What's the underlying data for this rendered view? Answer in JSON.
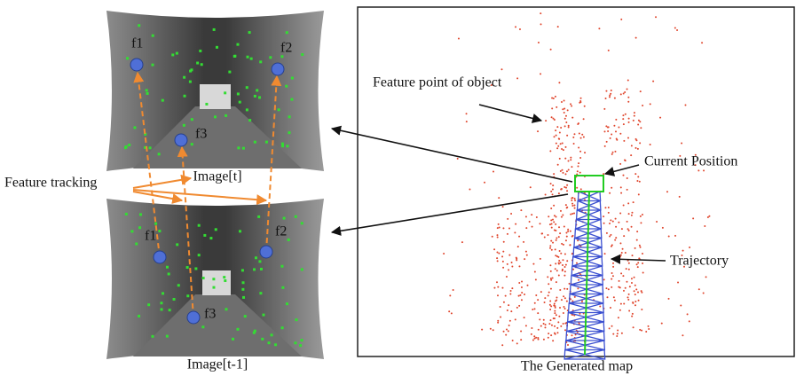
{
  "images": [
    {
      "caption": "Image[t]",
      "features": [
        "f1",
        "f2",
        "f3"
      ]
    },
    {
      "caption": "Image[t-1]",
      "features": [
        "f1",
        "f2",
        "f3"
      ]
    }
  ],
  "labels": {
    "feature_tracking": "Feature tracking"
  },
  "map": {
    "caption": "The Generated map",
    "annotations": [
      "Feature point of object",
      "Current Position",
      "Trajectory"
    ]
  }
}
